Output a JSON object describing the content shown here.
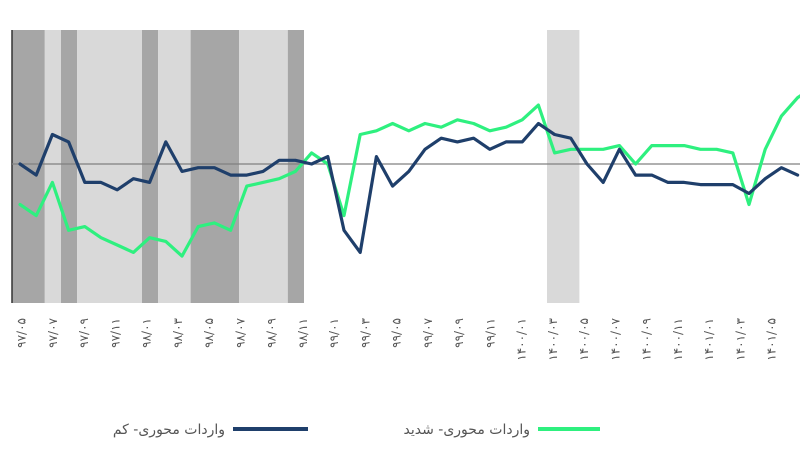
{
  "chart_data": {
    "type": "line",
    "title": "",
    "xlabel": "",
    "ylabel": "",
    "grid": false,
    "legend_position": "bottom",
    "colors": {
      "series_low": "#1f3f6b",
      "series_severe": "#2ef07f",
      "shade_light": "#d9d9d9",
      "shade_dark": "#a6a6a6",
      "zero_line": "#808080",
      "frame": "#333333"
    },
    "x_tick_labels": [
      "۹۷/۰۵",
      "۹۷/۰۷",
      "۹۷/۰۹",
      "۹۷/۱۱",
      "۹۸/۰۱",
      "۹۸/۰۳",
      "۹۸/۰۵",
      "۹۸/۰۷",
      "۹۸/۰۹",
      "۹۸/۱۱",
      "۹۹/۰۱",
      "۹۹/۰۳",
      "۹۹/۰۵",
      "۹۹/۰۷",
      "۹۹/۰۹",
      "۹۹/۱۱",
      "۱۴۰۰/۰۱",
      "۱۴۰۰/۰۳",
      "۱۴۰۰/۰۵",
      "۱۴۰۰/۰۷",
      "۱۴۰۰/۰۹",
      "۱۴۰۰/۱۱",
      "۱۴۰۱/۰۱",
      "۱۴۰۱/۰۳",
      "۱۴۰۱/۰۵"
    ],
    "y_range": [
      -1.5,
      1.5
    ],
    "shaded_periods": [
      {
        "start": 0,
        "end": 2,
        "tone": "dark"
      },
      {
        "start": 2,
        "end": 3,
        "tone": "light"
      },
      {
        "start": 3,
        "end": 4,
        "tone": "dark"
      },
      {
        "start": 4,
        "end": 8,
        "tone": "light"
      },
      {
        "start": 8,
        "end": 9,
        "tone": "dark"
      },
      {
        "start": 9,
        "end": 11,
        "tone": "light"
      },
      {
        "start": 11,
        "end": 14,
        "tone": "dark"
      },
      {
        "start": 14,
        "end": 17,
        "tone": "light"
      },
      {
        "start": 17,
        "end": 18,
        "tone": "dark"
      },
      {
        "start": 33,
        "end": 35,
        "tone": "light"
      }
    ],
    "series": [
      {
        "name": "واردات محوری- کم",
        "color": "#1f3f6b",
        "values": [
          0.0,
          -0.15,
          0.4,
          0.3,
          -0.25,
          -0.25,
          -0.35,
          -0.2,
          -0.25,
          0.3,
          -0.1,
          -0.05,
          -0.05,
          -0.15,
          -0.15,
          -0.1,
          0.05,
          0.05,
          0.0,
          0.1,
          -0.9,
          -1.2,
          0.1,
          -0.3,
          -0.1,
          0.2,
          0.35,
          0.3,
          0.35,
          0.2,
          0.3,
          0.3,
          0.55,
          0.4,
          0.35,
          0.0,
          -0.25,
          0.2,
          -0.15,
          -0.15,
          -0.25,
          -0.25,
          -0.28,
          -0.28,
          -0.28,
          -0.4,
          -0.2,
          -0.05,
          -0.15
        ]
      },
      {
        "name": "واردات محوری- شدید",
        "color": "#2ef07f",
        "values": [
          -0.55,
          -0.7,
          -0.25,
          -0.9,
          -0.85,
          -1.0,
          -1.1,
          -1.2,
          -1.0,
          -1.05,
          -1.25,
          -0.85,
          -0.8,
          -0.9,
          -0.3,
          -0.25,
          -0.2,
          -0.1,
          0.15,
          0.0,
          -0.7,
          0.4,
          0.45,
          0.55,
          0.45,
          0.55,
          0.5,
          0.6,
          0.55,
          0.45,
          0.5,
          0.6,
          0.8,
          0.15,
          0.2,
          0.2,
          0.2,
          0.25,
          0.0,
          0.25,
          0.25,
          0.25,
          0.2,
          0.2,
          0.15,
          -0.55,
          0.2,
          0.65,
          0.9,
          1.05,
          1.1
        ]
      }
    ]
  }
}
